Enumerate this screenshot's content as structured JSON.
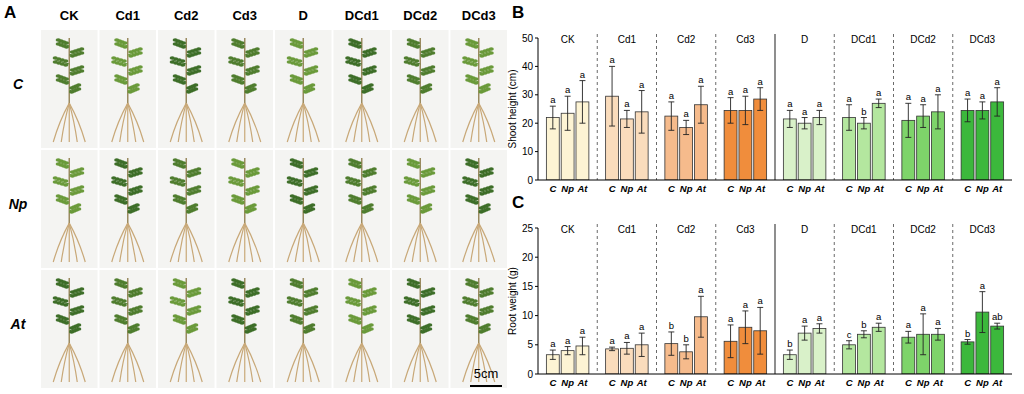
{
  "panel_a": {
    "label": "A",
    "columns": [
      "CK",
      "Cd1",
      "Cd2",
      "Cd3",
      "D",
      "DCd1",
      "DCd2",
      "DCd3"
    ],
    "rows": [
      "C",
      "Np",
      "At"
    ],
    "scale_bar": "5cm"
  },
  "chart_data": [
    {
      "type": "bar",
      "title": "B",
      "y_label": "Shoot height (cm)",
      "categories": [
        "C",
        "Np",
        "At"
      ],
      "ylim": [
        0,
        50
      ],
      "yticks": [
        0,
        10,
        20,
        30,
        40,
        50
      ],
      "grid": false,
      "series": [
        {
          "name": "CK",
          "color": "#fdf4d4",
          "values": [
            22,
            23.5,
            27.5
          ],
          "errors": [
            4,
            6,
            7.5
          ],
          "letters": [
            "a",
            "a",
            "a"
          ]
        },
        {
          "name": "Cd1",
          "color": "#fadcbc",
          "values": [
            29.5,
            21.5,
            24
          ],
          "errors": [
            10.5,
            3,
            7.5
          ],
          "letters": [
            "a",
            "a",
            "a"
          ]
        },
        {
          "name": "Cd2",
          "color": "#f6bb8c",
          "values": [
            22.5,
            18.5,
            26.5
          ],
          "errors": [
            5,
            2.5,
            6.5
          ],
          "letters": [
            "a",
            "a",
            "a"
          ]
        },
        {
          "name": "Cd3",
          "color": "#f08d3c",
          "values": [
            24.5,
            24.5,
            28.5
          ],
          "errors": [
            4.5,
            5,
            4
          ],
          "letters": [
            "a",
            "a",
            "a"
          ]
        },
        {
          "name": "D",
          "color": "#d9f1c9",
          "values": [
            21.5,
            20,
            22
          ],
          "errors": [
            3,
            2,
            2.5
          ],
          "letters": [
            "a",
            "a",
            "a"
          ]
        },
        {
          "name": "DCd1",
          "color": "#b4e79f",
          "values": [
            22,
            20,
            27
          ],
          "errors": [
            4.5,
            2,
            1.5
          ],
          "letters": [
            "a",
            "b",
            "a"
          ]
        },
        {
          "name": "DCd2",
          "color": "#7ed46a",
          "values": [
            21,
            22.5,
            24
          ],
          "errors": [
            6,
            4,
            6
          ],
          "letters": [
            "a",
            "a",
            "a"
          ]
        },
        {
          "name": "DCd3",
          "color": "#3cb83c",
          "values": [
            24.5,
            24.5,
            27.5
          ],
          "errors": [
            4,
            3,
            5
          ],
          "letters": [
            "a",
            "a",
            "a"
          ]
        }
      ]
    },
    {
      "type": "bar",
      "title": "C",
      "y_label": "Root weight (g)",
      "categories": [
        "C",
        "Np",
        "At"
      ],
      "ylim": [
        0,
        25
      ],
      "yticks": [
        0,
        5,
        10,
        15,
        20,
        25
      ],
      "grid": false,
      "series": [
        {
          "name": "CK",
          "color": "#fdf4d4",
          "values": [
            3.3,
            4,
            4.8
          ],
          "errors": [
            0.8,
            0.7,
            1.5
          ],
          "letters": [
            "a",
            "a",
            "a"
          ]
        },
        {
          "name": "Cd1",
          "color": "#fadcbc",
          "values": [
            4.3,
            4.4,
            5
          ],
          "errors": [
            0.3,
            1,
            2
          ],
          "letters": [
            "a",
            "a",
            "a"
          ]
        },
        {
          "name": "Cd2",
          "color": "#f6bb8c",
          "values": [
            5.2,
            3.8,
            9.8
          ],
          "errors": [
            2,
            1.2,
            3.5
          ],
          "letters": [
            "b",
            "b",
            "a"
          ]
        },
        {
          "name": "Cd3",
          "color": "#f08d3c",
          "values": [
            5.6,
            8,
            7.4
          ],
          "errors": [
            2.8,
            2.8,
            4
          ],
          "letters": [
            "a",
            "a",
            "a"
          ]
        },
        {
          "name": "D",
          "color": "#d9f1c9",
          "values": [
            3.3,
            7,
            7.8
          ],
          "errors": [
            0.8,
            1.2,
            0.8
          ],
          "letters": [
            "b",
            "a",
            "a"
          ]
        },
        {
          "name": "DCd1",
          "color": "#b4e79f",
          "values": [
            5,
            6.8,
            8
          ],
          "errors": [
            0.7,
            0.6,
            0.7
          ],
          "letters": [
            "c",
            "b",
            "a"
          ]
        },
        {
          "name": "DCd2",
          "color": "#7ed46a",
          "values": [
            6.3,
            6.8,
            6.8
          ],
          "errors": [
            1,
            3.5,
            1
          ],
          "letters": [
            "a",
            "a",
            "a"
          ]
        },
        {
          "name": "DCd3",
          "color": "#3cb83c",
          "values": [
            5.5,
            10.6,
            8.2
          ],
          "errors": [
            0.4,
            3.5,
            0.5
          ],
          "letters": [
            "b",
            "a",
            "ab"
          ]
        }
      ]
    }
  ]
}
